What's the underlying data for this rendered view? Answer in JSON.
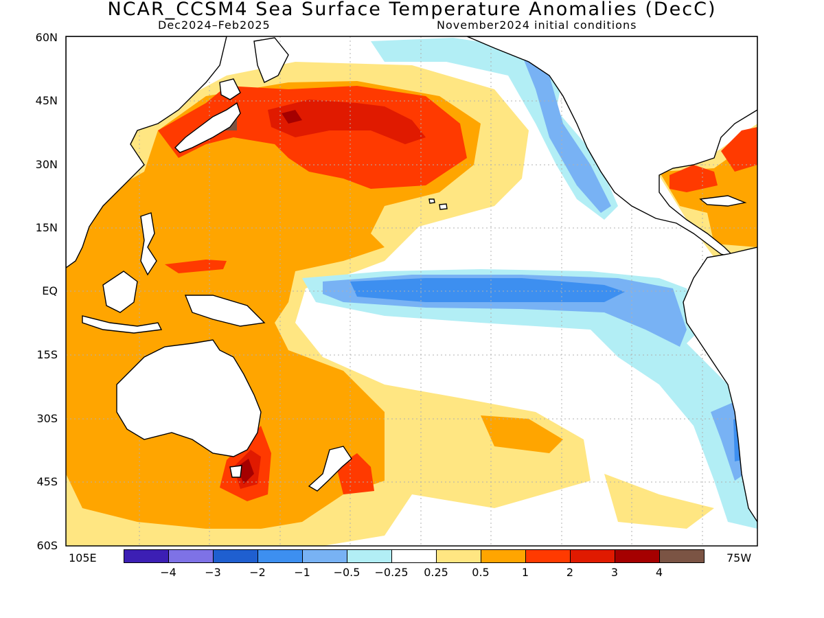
{
  "title": "NCAR_CCSM4 Sea Surface Temperature Anomalies (DecC)",
  "subtitle_left": "Dec2024–Feb2025",
  "subtitle_right": "November2024 initial conditions",
  "lat_labels": [
    "60N",
    "45N",
    "30N",
    "15N",
    "EQ",
    "15S",
    "30S",
    "45S",
    "60S"
  ],
  "lon_left_label": "105E",
  "lon_right_label": "75W",
  "colorbar": {
    "colors": [
      "#3c1fb4",
      "#7e72e6",
      "#1f5fd0",
      "#3d8ff0",
      "#78b2f4",
      "#b2eef5",
      "#ffffff",
      "#ffe682",
      "#ffa500",
      "#ff3a00",
      "#e01a00",
      "#a50000",
      "#7b5444"
    ],
    "ticks": [
      "−4",
      "−3",
      "−2",
      "−1",
      "−0.5",
      "−0.25",
      "0.25",
      "0.5",
      "1",
      "2",
      "3",
      "4"
    ]
  },
  "colors": {
    "ocean": "#ffffff",
    "grid": "#b0b0b0",
    "coast": "#000000"
  }
}
